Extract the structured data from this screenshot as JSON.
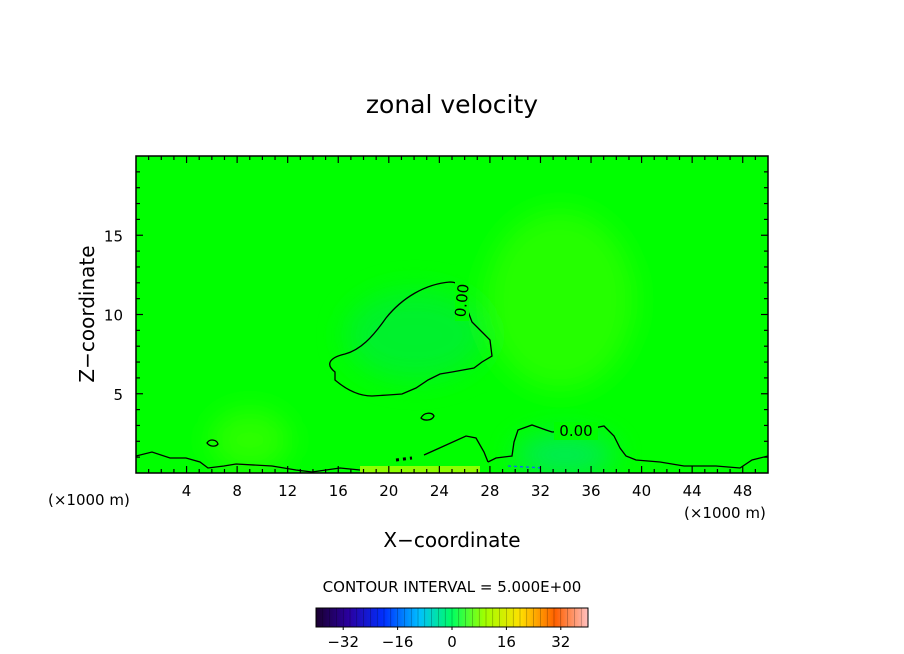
{
  "chart_data": {
    "type": "heatmap",
    "title": "zonal velocity",
    "xlabel": "X−coordinate",
    "ylabel": "Z−coordinate",
    "x_unit_left": "(×1000 m)",
    "x_unit_right": "(×1000 m)",
    "xlim": [
      0,
      50
    ],
    "ylim": [
      0,
      20
    ],
    "x_ticks": [
      4,
      8,
      12,
      16,
      20,
      24,
      28,
      32,
      36,
      40,
      44,
      48
    ],
    "y_ticks": [
      5,
      10,
      15
    ],
    "contour_labels": [
      {
        "text": "0.00",
        "x": 25.8,
        "y": 10.3
      },
      {
        "text": "0.00",
        "x": 34.8,
        "y": 2.6
      }
    ],
    "contour_interval_text": "CONTOUR INTERVAL = 5.000E+00",
    "colorbar": {
      "min": -40,
      "max": 40,
      "ticks": [
        -32,
        -16,
        0,
        16,
        32
      ],
      "tick_labels": [
        "−32",
        "−16",
        "0",
        "16",
        "32"
      ]
    },
    "colors": {
      "field_base": "#00ff00",
      "field_positive": "#33ff00",
      "field_negative": "#00f040",
      "contour_line": "#000000"
    }
  }
}
